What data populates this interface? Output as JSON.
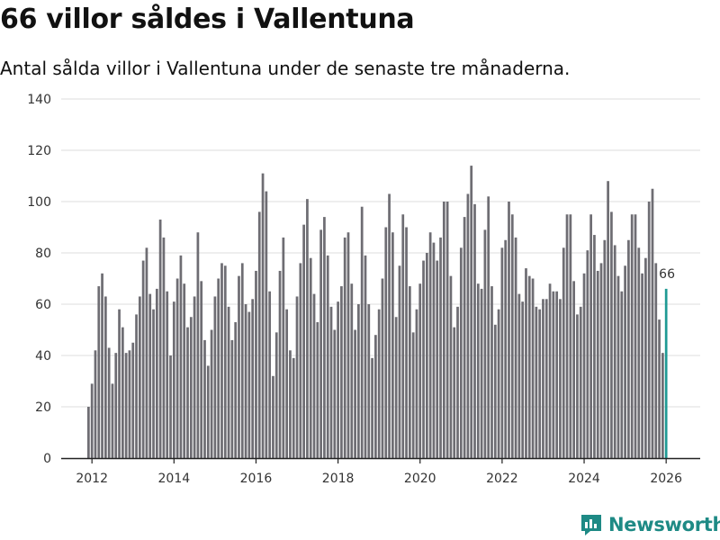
{
  "header": {
    "title": "66 villor såldes i Vallentuna",
    "subtitle": "Antal sålda villor i Vallentuna under de senaste tre månaderna."
  },
  "brand": {
    "name": "Newsworthy"
  },
  "colors": {
    "bar": "#6e6d73",
    "highlight": "#1f9a94",
    "grid": "#dcdcdc",
    "axis": "#222222",
    "brand": "#1e8a85"
  },
  "chart_data": {
    "type": "bar",
    "title": "66 villor såldes i Vallentuna",
    "subtitle": "Antal sålda villor i Vallentuna under de senaste tre månaderna.",
    "xlabel": "",
    "ylabel": "",
    "ylim": [
      0,
      140
    ],
    "yticks": [
      0,
      20,
      40,
      60,
      80,
      100,
      120,
      140
    ],
    "xlim": [
      2011.25,
      2026.83
    ],
    "xticks": [
      {
        "value": 2012,
        "label": "2012"
      },
      {
        "value": 2014,
        "label": "2014"
      },
      {
        "value": 2016,
        "label": "2016"
      },
      {
        "value": 2018,
        "label": "2018"
      },
      {
        "value": 2020,
        "label": "2020"
      },
      {
        "value": 2022,
        "label": "2022"
      },
      {
        "value": 2024,
        "label": "2024"
      },
      {
        "value": 2026,
        "label": "2026"
      }
    ],
    "start": {
      "year": 2011,
      "month": 12
    },
    "frequency": "monthly",
    "grid": true,
    "highlight_label": "66",
    "values": [
      20,
      29,
      42,
      67,
      72,
      63,
      43,
      29,
      41,
      58,
      51,
      41,
      42,
      45,
      56,
      63,
      77,
      82,
      64,
      58,
      66,
      93,
      86,
      65,
      40,
      61,
      70,
      79,
      68,
      51,
      55,
      63,
      88,
      69,
      46,
      36,
      50,
      63,
      70,
      76,
      75,
      59,
      46,
      53,
      71,
      76,
      60,
      57,
      62,
      73,
      96,
      111,
      104,
      65,
      32,
      49,
      73,
      86,
      58,
      42,
      39,
      63,
      76,
      91,
      101,
      78,
      64,
      53,
      89,
      94,
      79,
      59,
      50,
      61,
      67,
      86,
      88,
      68,
      50,
      60,
      98,
      79,
      60,
      39,
      48,
      58,
      70,
      90,
      103,
      88,
      55,
      75,
      95,
      90,
      67,
      49,
      58,
      68,
      77,
      80,
      88,
      84,
      77,
      86,
      100,
      100,
      71,
      51,
      59,
      82,
      94,
      103,
      114,
      99,
      68,
      66,
      89,
      102,
      67,
      52,
      58,
      82,
      85,
      100,
      95,
      86,
      64,
      61,
      74,
      71,
      70,
      59,
      58,
      62,
      62,
      68,
      65,
      65,
      62,
      82,
      95,
      95,
      69,
      56,
      59,
      72,
      81,
      95,
      87,
      73,
      76,
      85,
      108,
      96,
      83,
      71,
      65,
      75,
      85,
      95,
      95,
      82,
      72,
      78,
      100,
      105,
      76,
      54,
      41,
      66
    ]
  }
}
